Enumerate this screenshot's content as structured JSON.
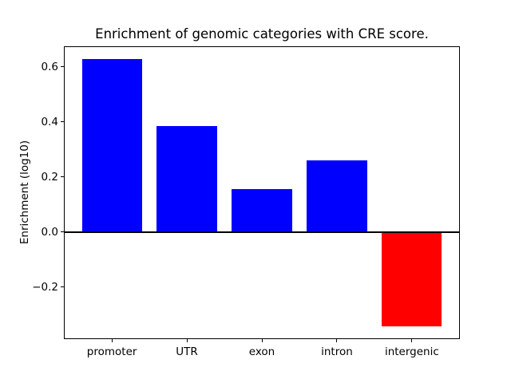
{
  "chart_data": {
    "type": "bar",
    "title": "Enrichment of genomic categories with CRE score.",
    "xlabel": "",
    "ylabel": "Enrichment (log10)",
    "categories": [
      "promoter",
      "UTR",
      "exon",
      "intron",
      "intergenic"
    ],
    "values": [
      0.63,
      0.385,
      0.157,
      0.261,
      -0.345
    ],
    "bar_colors": [
      "#0000ff",
      "#0000ff",
      "#0000ff",
      "#0000ff",
      "#ff0000"
    ],
    "positive_color": "#0000ff",
    "negative_color": "#ff0000",
    "yticks": [
      0.6,
      0.4,
      0.2,
      0.0,
      -0.2
    ],
    "ytick_labels": [
      "0.6",
      "0.4",
      "0.2",
      "0.0",
      "−0.2"
    ],
    "ylim": [
      -0.39,
      0.675
    ],
    "xlim": [
      -0.64,
      4.64
    ],
    "bar_width": 0.8,
    "zero_line": true,
    "grid": false,
    "legend": null
  }
}
